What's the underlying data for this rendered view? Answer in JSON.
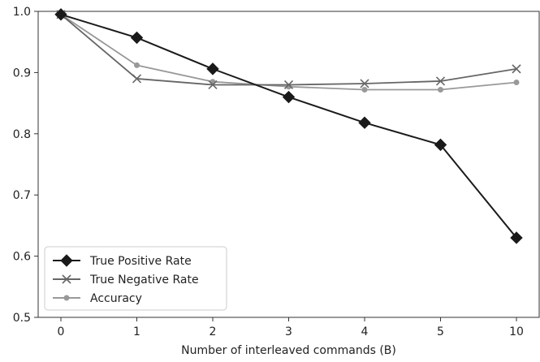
{
  "chart_data": {
    "type": "line",
    "title": "",
    "xlabel": "Number of interleaved commands (B)",
    "ylabel": "",
    "categories": [
      "0",
      "1",
      "2",
      "3",
      "4",
      "5",
      "10"
    ],
    "ylim": [
      0.5,
      1.0
    ],
    "yticks": [
      "0.5",
      "0.6",
      "0.7",
      "0.8",
      "0.9",
      "1.0"
    ],
    "grid": false,
    "legend_position": "bottom-left",
    "series": [
      {
        "name": "True Positive Rate",
        "marker": "diamond",
        "color": "#1a1a1a",
        "values": [
          0.995,
          0.957,
          0.906,
          0.86,
          0.818,
          0.782,
          0.63
        ]
      },
      {
        "name": "True Negative Rate",
        "marker": "x",
        "color": "#666666",
        "values": [
          0.995,
          0.89,
          0.88,
          0.88,
          0.882,
          0.886,
          0.906
        ]
      },
      {
        "name": "Accuracy",
        "marker": "dot",
        "color": "#999999",
        "values": [
          0.995,
          0.912,
          0.885,
          0.877,
          0.872,
          0.872,
          0.884
        ]
      }
    ]
  }
}
